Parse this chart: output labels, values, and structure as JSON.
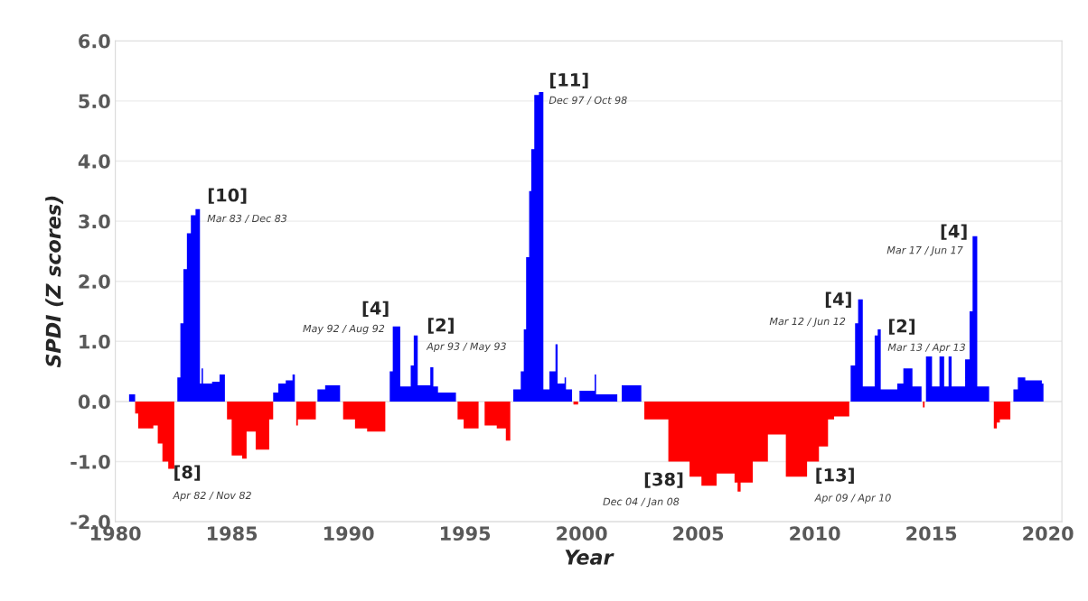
{
  "chart_data": {
    "type": "area",
    "xlabel": "Year",
    "ylabel": "SPDI (Z scores)",
    "xlim": [
      1980,
      2020.6
    ],
    "xticks": [
      1980,
      1985,
      1990,
      1995,
      2000,
      2005,
      2010,
      2015,
      2020
    ],
    "ylim": [
      -2,
      6
    ],
    "yticks": [
      {
        "value": -2,
        "label": "-2.0"
      },
      {
        "value": -1,
        "label": "-1.0"
      },
      {
        "value": 0,
        "label": "0.0"
      },
      {
        "value": 1,
        "label": "1.0"
      },
      {
        "value": 2,
        "label": "2.0"
      },
      {
        "value": 3,
        "label": "3.0"
      },
      {
        "value": 4,
        "label": "4.0"
      },
      {
        "value": 5,
        "label": "5.0"
      },
      {
        "value": 6,
        "label": "6.0"
      }
    ],
    "grid": "y",
    "legend": false,
    "series": [
      {
        "color": "#0000ff",
        "x": [
          1980.59,
          1980.85,
          1982.66,
          1982.79,
          1982.92,
          1983.07,
          1983.24,
          1983.44,
          1983.63,
          1983.7,
          1983.76,
          1984.15,
          1984.47,
          1984.7,
          1986.77,
          1986.99,
          1987.31,
          1987.6,
          1987.7,
          1988.67,
          1989.0,
          1989.64,
          1991.77,
          1991.9,
          1992.22,
          1992.67,
          1992.8,
          1992.97,
          1993.51,
          1993.64,
          1993.84,
          1994.61,
          1997.07,
          1997.39,
          1997.52,
          1997.62,
          1997.75,
          1997.84,
          1997.97,
          1998.17,
          1998.36,
          1998.62,
          1998.88,
          1998.97,
          1999.27,
          1999.33,
          1999.59,
          1999.91,
          2000.56,
          2000.62,
          2001.53,
          2001.72,
          2002.56,
          2011.54,
          2011.73,
          2011.86,
          2012.06,
          2012.57,
          2012.7,
          2012.83,
          2013.54,
          2013.8,
          2014.19,
          2014.58,
          2014.77,
          2015.03,
          2015.35,
          2015.55,
          2015.74,
          2015.87,
          2016.45,
          2016.64,
          2016.77,
          2016.97,
          2017.48,
          2018.52,
          2018.71,
          2019.03,
          2019.74,
          2019.81
        ],
        "values": [
          0.12,
          0,
          0.4,
          1.3,
          2.2,
          2.8,
          3.1,
          3.2,
          0.3,
          0.55,
          0.3,
          0.33,
          0.45,
          0,
          0.15,
          0.3,
          0.35,
          0.45,
          0,
          0.2,
          0.27,
          0,
          0.5,
          1.25,
          0.25,
          0.6,
          1.1,
          0.27,
          0.57,
          0.25,
          0.15,
          0,
          0.2,
          0.5,
          1.2,
          2.4,
          3.5,
          4.2,
          5.1,
          5.15,
          0.2,
          0.5,
          0.95,
          0.3,
          0.4,
          0.2,
          0,
          0.18,
          0.45,
          0.12,
          0,
          0.27,
          0,
          0.6,
          1.3,
          1.7,
          0.25,
          1.1,
          1.2,
          0.2,
          0.3,
          0.55,
          0.25,
          0,
          0.75,
          0.25,
          0.75,
          0.25,
          0.75,
          0.25,
          0.7,
          1.5,
          2.75,
          0.25,
          0,
          0.2,
          0.4,
          0.35,
          0.3,
          0
        ]
      },
      {
        "color": "#ff0000",
        "x": [
          1980.85,
          1980.98,
          1981.63,
          1981.82,
          1982.02,
          1982.27,
          1982.53,
          1984.79,
          1984.99,
          1985.44,
          1985.63,
          1986.02,
          1986.6,
          1986.77,
          1987.76,
          1987.83,
          1988.6,
          1989.77,
          1990.28,
          1990.8,
          1991.58,
          1994.68,
          1994.94,
          1995.58,
          1995.84,
          1996.36,
          1996.75,
          1996.94,
          1999.65,
          1999.85,
          2002.69,
          2003.72,
          2004.63,
          2005.14,
          2005.79,
          2006.56,
          2006.69,
          2006.82,
          2007.34,
          2007.99,
          2008.76,
          2009.67,
          2010.18,
          2010.57,
          2010.83,
          2011.48,
          2014.64,
          2014.71,
          2017.68,
          2017.81,
          2017.94,
          2018.39
        ],
        "values": [
          -0.2,
          -0.45,
          -0.4,
          -0.7,
          -1.0,
          -1.12,
          0,
          -0.3,
          -0.9,
          -0.95,
          -0.5,
          -0.8,
          -0.3,
          0,
          -0.4,
          -0.3,
          0,
          -0.3,
          -0.45,
          -0.5,
          0,
          -0.3,
          -0.45,
          0,
          -0.4,
          -0.45,
          -0.65,
          0,
          -0.05,
          0,
          -0.3,
          -1.0,
          -1.25,
          -1.4,
          -1.2,
          -1.35,
          -1.5,
          -1.35,
          -1.0,
          -0.55,
          -1.25,
          -1.0,
          -0.75,
          -0.3,
          -0.25,
          0,
          -0.1,
          0,
          -0.45,
          -0.35,
          -0.3,
          0
        ]
      }
    ],
    "annotations": [
      "[8]",
      "Apr 82 / Nov 82",
      "[10]",
      "Mar 83 / Dec 83",
      "[4]",
      "May 92 / Aug 92",
      "[2]",
      "Apr 93 / May 93",
      "[11]",
      "Dec 97 / Oct 98",
      "[38]",
      "Dec 04 / Jan 08",
      "[13]",
      "Apr 09 / Apr 10",
      "[4]",
      "Mar 12 / Jun 12",
      "[2]",
      "Mar 13 / Apr 13",
      "[4]",
      "Mar 17 / Jun 17"
    ]
  }
}
